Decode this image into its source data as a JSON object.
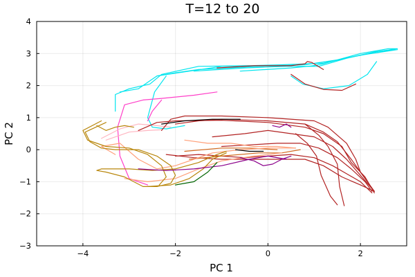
{
  "chart_data": {
    "type": "line",
    "title": "T=12 to 20",
    "xlabel": "PC 1",
    "ylabel": "PC 2",
    "xlim": [
      -5,
      3
    ],
    "ylim": [
      -3,
      4
    ],
    "xticks": [
      -4,
      -2,
      0,
      2
    ],
    "yticks": [
      -3,
      -2,
      -1,
      0,
      1,
      2,
      3,
      4
    ],
    "tick_text": {
      "x": [
        "−4",
        "−2",
        "0",
        "2"
      ],
      "y": [
        "−3",
        "−2",
        "−1",
        "0",
        "1",
        "2",
        "3",
        "4"
      ]
    },
    "grid": true,
    "legend": "none",
    "series": [
      {
        "color": "#00E5EE",
        "points": [
          [
            -1.6,
            2.45
          ],
          [
            -0.5,
            2.55
          ],
          [
            0.4,
            2.6
          ],
          [
            1.1,
            2.6
          ],
          [
            1.7,
            2.85
          ],
          [
            2.3,
            3.05
          ],
          [
            2.8,
            3.15
          ],
          [
            2.6,
            3.15
          ],
          [
            2.0,
            3.0
          ],
          [
            1.5,
            2.8
          ],
          [
            1.2,
            2.68
          ],
          [
            0.9,
            2.6
          ],
          [
            0.5,
            2.6
          ],
          [
            -0.5,
            2.62
          ],
          [
            -1.5,
            2.6
          ],
          [
            -2.3,
            2.35
          ],
          [
            -2.55,
            2.05
          ],
          [
            -3.0,
            1.9
          ],
          [
            -3.3,
            1.72
          ],
          [
            -3.3,
            1.2
          ]
        ]
      },
      {
        "color": "#00E5EE",
        "points": [
          [
            -2.4,
            2.3
          ],
          [
            -1.0,
            2.6
          ],
          [
            0.3,
            2.65
          ],
          [
            1.2,
            2.7
          ],
          [
            2.0,
            2.95
          ],
          [
            2.7,
            3.1
          ],
          [
            2.8,
            3.12
          ]
        ]
      },
      {
        "color": "#00E5EE",
        "points": [
          [
            -1.5,
            2.5
          ],
          [
            -0.2,
            2.6
          ],
          [
            0.8,
            2.65
          ],
          [
            1.5,
            2.8
          ],
          [
            2.2,
            3.0
          ],
          [
            2.75,
            3.12
          ]
        ]
      },
      {
        "color": "#00E5EE",
        "points": [
          [
            -0.6,
            2.45
          ],
          [
            0.5,
            2.55
          ],
          [
            1.0,
            2.62
          ]
        ]
      },
      {
        "color": "#00E5EE",
        "points": [
          [
            -2.2,
            2.3
          ],
          [
            -2.45,
            1.8
          ],
          [
            -2.6,
            1.0
          ],
          [
            -2.5,
            0.7
          ],
          [
            -2.2,
            0.65
          ],
          [
            -1.8,
            0.75
          ]
        ]
      },
      {
        "color": "#00E5EE",
        "points": [
          [
            0.5,
            2.3
          ],
          [
            0.75,
            2.05
          ],
          [
            1.2,
            1.9
          ],
          [
            1.75,
            2.0
          ],
          [
            2.15,
            2.35
          ],
          [
            2.35,
            2.75
          ]
        ]
      },
      {
        "color": "#00E5EE",
        "points": [
          [
            -1.5,
            2.5
          ],
          [
            -2.0,
            2.4
          ],
          [
            -2.4,
            2.3
          ],
          [
            -2.6,
            2.1
          ],
          [
            -2.8,
            1.9
          ],
          [
            -3.2,
            1.8
          ]
        ]
      },
      {
        "color": "#FF3EC8",
        "points": [
          [
            -1.1,
            1.8
          ],
          [
            -1.6,
            1.7
          ],
          [
            -2.3,
            1.6
          ],
          [
            -2.7,
            1.55
          ],
          [
            -3.1,
            1.4
          ],
          [
            -3.25,
            0.7
          ],
          [
            -3.2,
            -0.2
          ],
          [
            -3.0,
            -0.9
          ],
          [
            -2.6,
            -1.1
          ]
        ]
      },
      {
        "color": "#FF3EC8",
        "points": [
          [
            -2.3,
            1.55
          ],
          [
            -2.5,
            1.2
          ],
          [
            -2.6,
            0.9
          ]
        ]
      },
      {
        "color": "#FFB6C1",
        "points": [
          [
            -3.6,
            0.35
          ],
          [
            -3.2,
            0.65
          ],
          [
            -2.8,
            0.8
          ],
          [
            -2.4,
            0.75
          ],
          [
            -2.1,
            0.7
          ]
        ]
      },
      {
        "color": "#FFB6C1",
        "points": [
          [
            -3.5,
            0.3
          ],
          [
            -3.0,
            0.55
          ],
          [
            -2.6,
            0.6
          ],
          [
            -2.3,
            0.62
          ]
        ]
      },
      {
        "color": "#B22222",
        "points": [
          [
            -2.3,
            0.6
          ],
          [
            -2.1,
            0.95
          ],
          [
            -1.8,
            1.05
          ],
          [
            -1.0,
            1.05
          ],
          [
            0.0,
            1.0
          ],
          [
            1.0,
            0.9
          ],
          [
            1.3,
            0.7
          ],
          [
            1.7,
            0.2
          ],
          [
            1.9,
            -0.3
          ],
          [
            2.0,
            -0.7
          ],
          [
            2.3,
            -1.3
          ]
        ]
      },
      {
        "color": "#B22222",
        "points": [
          [
            -2.8,
            0.6
          ],
          [
            -2.4,
            0.85
          ],
          [
            -2.0,
            0.9
          ],
          [
            -1.0,
            0.92
          ],
          [
            0.0,
            0.85
          ],
          [
            0.8,
            0.7
          ],
          [
            1.2,
            0.5
          ],
          [
            1.6,
            0.1
          ],
          [
            1.8,
            -0.4
          ],
          [
            2.1,
            -0.85
          ],
          [
            2.3,
            -1.35
          ]
        ]
      },
      {
        "color": "#B22222",
        "points": [
          [
            -2.0,
            0.8
          ],
          [
            -1.5,
            0.9
          ],
          [
            -1.0,
            0.95
          ],
          [
            0.0,
            0.9
          ],
          [
            0.8,
            0.8
          ],
          [
            1.2,
            0.55
          ],
          [
            1.5,
            0.25
          ],
          [
            1.8,
            -0.3
          ],
          [
            2.1,
            -0.9
          ],
          [
            2.3,
            -1.3
          ]
        ]
      },
      {
        "color": "#B22222",
        "points": [
          [
            -1.2,
            0.4
          ],
          [
            -0.5,
            0.5
          ],
          [
            0.0,
            0.6
          ],
          [
            0.5,
            0.5
          ],
          [
            1.0,
            0.4
          ],
          [
            1.4,
            0.1
          ],
          [
            1.7,
            -0.3
          ],
          [
            2.0,
            -0.8
          ],
          [
            2.3,
            -1.3
          ]
        ]
      },
      {
        "color": "#B22222",
        "points": [
          [
            -1.0,
            0.1
          ],
          [
            -0.4,
            0.15
          ],
          [
            0.2,
            0.2
          ],
          [
            0.7,
            0.2
          ],
          [
            1.1,
            0.05
          ],
          [
            1.5,
            -0.25
          ],
          [
            1.8,
            -0.6
          ],
          [
            2.1,
            -1.0
          ],
          [
            2.25,
            -1.3
          ]
        ]
      },
      {
        "color": "#B22222",
        "points": [
          [
            -2.0,
            -0.2
          ],
          [
            -1.5,
            -0.15
          ],
          [
            -1.0,
            -0.2
          ],
          [
            -0.5,
            -0.25
          ],
          [
            0.0,
            -0.2
          ],
          [
            0.5,
            -0.15
          ],
          [
            1.0,
            -0.25
          ],
          [
            1.4,
            -0.5
          ],
          [
            1.7,
            -0.75
          ],
          [
            2.0,
            -1.0
          ],
          [
            2.25,
            -1.35
          ]
        ]
      },
      {
        "color": "#B22222",
        "points": [
          [
            -2.2,
            -0.15
          ],
          [
            -1.6,
            -0.25
          ],
          [
            -1.0,
            -0.3
          ],
          [
            -0.3,
            -0.3
          ],
          [
            0.3,
            -0.3
          ],
          [
            0.8,
            -0.3
          ],
          [
            1.2,
            -0.5
          ],
          [
            1.6,
            -0.85
          ],
          [
            2.0,
            -1.1
          ],
          [
            2.3,
            -1.3
          ]
        ]
      },
      {
        "color": "#B22222",
        "points": [
          [
            0.8,
            0.8
          ],
          [
            1.1,
            0.45
          ],
          [
            1.3,
            0.1
          ],
          [
            1.5,
            -0.45
          ],
          [
            1.55,
            -1.15
          ],
          [
            1.65,
            -1.75
          ]
        ]
      },
      {
        "color": "#B22222",
        "points": [
          [
            0.6,
            0.5
          ],
          [
            0.85,
            0.2
          ],
          [
            1.05,
            -0.2
          ],
          [
            1.15,
            -0.8
          ],
          [
            1.35,
            -1.45
          ],
          [
            1.5,
            -1.72
          ]
        ]
      },
      {
        "color": "#B22222",
        "points": [
          [
            -1.1,
            2.55
          ],
          [
            -0.3,
            2.62
          ],
          [
            0.5,
            2.62
          ],
          [
            0.8,
            2.68
          ],
          [
            0.85,
            2.75
          ],
          [
            0.95,
            2.72
          ],
          [
            1.2,
            2.5
          ]
        ]
      },
      {
        "color": "#B22222",
        "points": [
          [
            0.5,
            2.35
          ],
          [
            0.8,
            2.05
          ],
          [
            1.2,
            1.88
          ],
          [
            1.6,
            1.85
          ],
          [
            1.9,
            2.05
          ]
        ]
      },
      {
        "color": "#D2691E",
        "points": [
          [
            -1.7,
            -0.3
          ],
          [
            -1.0,
            -0.2
          ],
          [
            -0.2,
            -0.1
          ],
          [
            0.3,
            -0.1
          ],
          [
            0.7,
            0.0
          ]
        ]
      },
      {
        "color": "#D2691E",
        "points": [
          [
            -1.8,
            -0.05
          ],
          [
            -1.0,
            0.05
          ],
          [
            -0.4,
            0.05
          ],
          [
            0.2,
            0.0
          ]
        ]
      },
      {
        "color": "#FFA07A",
        "points": [
          [
            -3.3,
            -0.15
          ],
          [
            -3.6,
            0.1
          ],
          [
            -3.2,
            0.2
          ],
          [
            -2.8,
            -0.3
          ],
          [
            -2.4,
            -0.6
          ],
          [
            -2.0,
            -0.5
          ],
          [
            -1.6,
            -0.3
          ],
          [
            -1.2,
            -0.1
          ],
          [
            -0.6,
            0.0
          ],
          [
            0.0,
            0.05
          ],
          [
            0.6,
            0.05
          ]
        ]
      },
      {
        "color": "#FFA07A",
        "points": [
          [
            -3.1,
            -0.9
          ],
          [
            -2.6,
            -1.0
          ],
          [
            -2.0,
            -0.9
          ],
          [
            -1.5,
            -0.6
          ],
          [
            -1.0,
            -0.35
          ],
          [
            -0.3,
            -0.2
          ],
          [
            0.3,
            -0.1
          ]
        ]
      },
      {
        "color": "#B8860B",
        "points": [
          [
            -3.5,
            0.85
          ],
          [
            -3.95,
            0.55
          ],
          [
            -3.85,
            0.25
          ],
          [
            -3.6,
            0.05
          ],
          [
            -3.3,
            0.0
          ],
          [
            -2.8,
            0.0
          ],
          [
            -2.4,
            -0.2
          ],
          [
            -2.1,
            -0.5
          ],
          [
            -2.0,
            -0.8
          ],
          [
            -2.1,
            -1.05
          ],
          [
            -2.4,
            -1.15
          ],
          [
            -2.7,
            -1.15
          ],
          [
            -3.1,
            -0.85
          ],
          [
            -3.5,
            -0.7
          ],
          [
            -3.7,
            -0.65
          ],
          [
            -3.6,
            -0.6
          ],
          [
            -3.0,
            -0.6
          ],
          [
            -2.5,
            -0.65
          ],
          [
            -2.0,
            -0.6
          ],
          [
            -1.5,
            -0.4
          ],
          [
            -1.1,
            -0.15
          ],
          [
            -0.9,
            -0.05
          ]
        ]
      },
      {
        "color": "#B8860B",
        "points": [
          [
            -3.6,
            0.9
          ],
          [
            -4.0,
            0.6
          ],
          [
            -3.9,
            0.3
          ],
          [
            -3.5,
            0.1
          ],
          [
            -3.0,
            0.05
          ],
          [
            -2.6,
            -0.15
          ],
          [
            -2.3,
            -0.5
          ],
          [
            -2.2,
            -0.85
          ],
          [
            -2.35,
            -1.1
          ]
        ]
      },
      {
        "color": "#B8860B",
        "points": [
          [
            -3.7,
            0.75
          ],
          [
            -3.5,
            0.6
          ],
          [
            -3.3,
            0.7
          ],
          [
            -3.1,
            0.75
          ],
          [
            -2.9,
            0.7
          ]
        ]
      },
      {
        "color": "#B8860B",
        "points": [
          [
            -2.6,
            -1.15
          ],
          [
            -2.1,
            -1.1
          ],
          [
            -1.7,
            -0.9
          ],
          [
            -1.4,
            -0.6
          ],
          [
            -1.2,
            -0.3
          ],
          [
            -0.9,
            -0.1
          ]
        ]
      },
      {
        "color": "#8B008B",
        "points": [
          [
            -2.8,
            -0.6
          ],
          [
            -2.2,
            -0.65
          ],
          [
            -1.6,
            -0.6
          ],
          [
            -1.0,
            -0.5
          ],
          [
            -0.4,
            -0.3
          ],
          [
            0.0,
            -0.2
          ],
          [
            0.4,
            -0.3
          ]
        ]
      },
      {
        "color": "#8B008B",
        "points": [
          [
            -0.6,
            -0.25
          ],
          [
            -0.3,
            -0.35
          ],
          [
            -0.1,
            -0.5
          ],
          [
            0.1,
            -0.45
          ],
          [
            0.3,
            -0.3
          ],
          [
            0.5,
            -0.2
          ]
        ]
      },
      {
        "color": "#8B008B",
        "points": [
          [
            0.1,
            0.75
          ],
          [
            0.25,
            0.7
          ],
          [
            0.4,
            0.8
          ],
          [
            0.5,
            0.7
          ]
        ]
      },
      {
        "color": "#006400",
        "points": [
          [
            -2.0,
            -1.1
          ],
          [
            -1.6,
            -1.0
          ],
          [
            -1.3,
            -0.7
          ],
          [
            -1.1,
            -0.4
          ]
        ]
      },
      {
        "color": "#000000",
        "points": [
          [
            -2.3,
            0.8
          ],
          [
            -1.8,
            0.9
          ],
          [
            -1.2,
            0.95
          ],
          [
            -0.6,
            0.95
          ]
        ]
      },
      {
        "color": "#000000",
        "points": [
          [
            -0.7,
            0.0
          ],
          [
            -0.4,
            -0.05
          ],
          [
            -0.1,
            -0.05
          ]
        ]
      },
      {
        "color": "#FFA07A",
        "points": [
          [
            -1.8,
            0.3
          ],
          [
            -1.3,
            0.2
          ],
          [
            -0.8,
            0.2
          ],
          [
            -0.3,
            0.1
          ],
          [
            0.2,
            0.1
          ],
          [
            0.6,
            0.05
          ]
        ]
      }
    ]
  }
}
